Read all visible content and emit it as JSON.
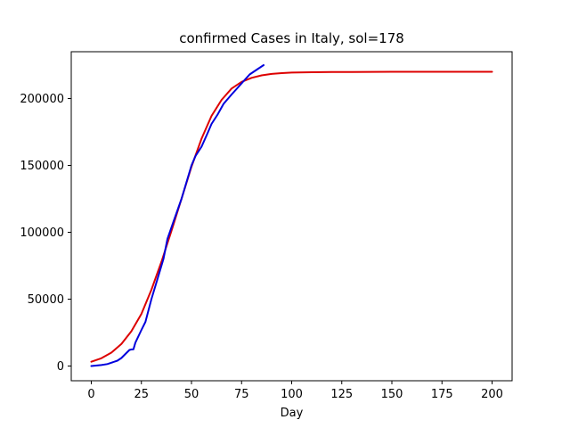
{
  "chart_data": {
    "type": "line",
    "title": "confirmed Cases in Italy, sol=178",
    "xlabel": "Day",
    "ylabel": "",
    "xlim": [
      -10,
      210
    ],
    "ylim": [
      -11000,
      235000
    ],
    "xticks": [
      0,
      25,
      50,
      75,
      100,
      125,
      150,
      175,
      200
    ],
    "yticks": [
      0,
      50000,
      100000,
      150000,
      200000
    ],
    "xtick_labels": [
      "0",
      "25",
      "50",
      "75",
      "100",
      "125",
      "150",
      "175",
      "200"
    ],
    "ytick_labels": [
      "0",
      "50000",
      "100000",
      "150000",
      "200000"
    ],
    "grid": false,
    "series": [
      {
        "color": "#dd0000",
        "x": [
          0,
          5,
          10,
          15,
          20,
          25,
          30,
          35,
          40,
          45,
          50,
          55,
          60,
          65,
          70,
          75,
          80,
          85,
          90,
          95,
          100,
          110,
          120,
          130,
          150,
          175,
          200
        ],
        "values": [
          3200,
          5800,
          10000,
          16500,
          26000,
          39000,
          57000,
          78000,
          101000,
          125000,
          149000,
          170000,
          187000,
          199000,
          207500,
          212500,
          215500,
          217300,
          218400,
          219000,
          219400,
          219700,
          219850,
          219900,
          220000,
          220000,
          220000
        ]
      },
      {
        "color": "#0000dd",
        "x": [
          0,
          5,
          8,
          10,
          13,
          15,
          17,
          19,
          20,
          21,
          22,
          25,
          27,
          30,
          33,
          36,
          38,
          41,
          45,
          50,
          52,
          55,
          58,
          60,
          63,
          66,
          70,
          73,
          76,
          79,
          82,
          86
        ],
        "values": [
          0,
          700,
          1500,
          2500,
          4000,
          6000,
          9000,
          12000,
          12400,
          12500,
          17500,
          27000,
          33000,
          50000,
          65000,
          80000,
          95000,
          108000,
          125000,
          150000,
          157000,
          164000,
          174000,
          181000,
          188000,
          196000,
          203000,
          208000,
          213000,
          218000,
          221000,
          225000
        ]
      }
    ]
  }
}
